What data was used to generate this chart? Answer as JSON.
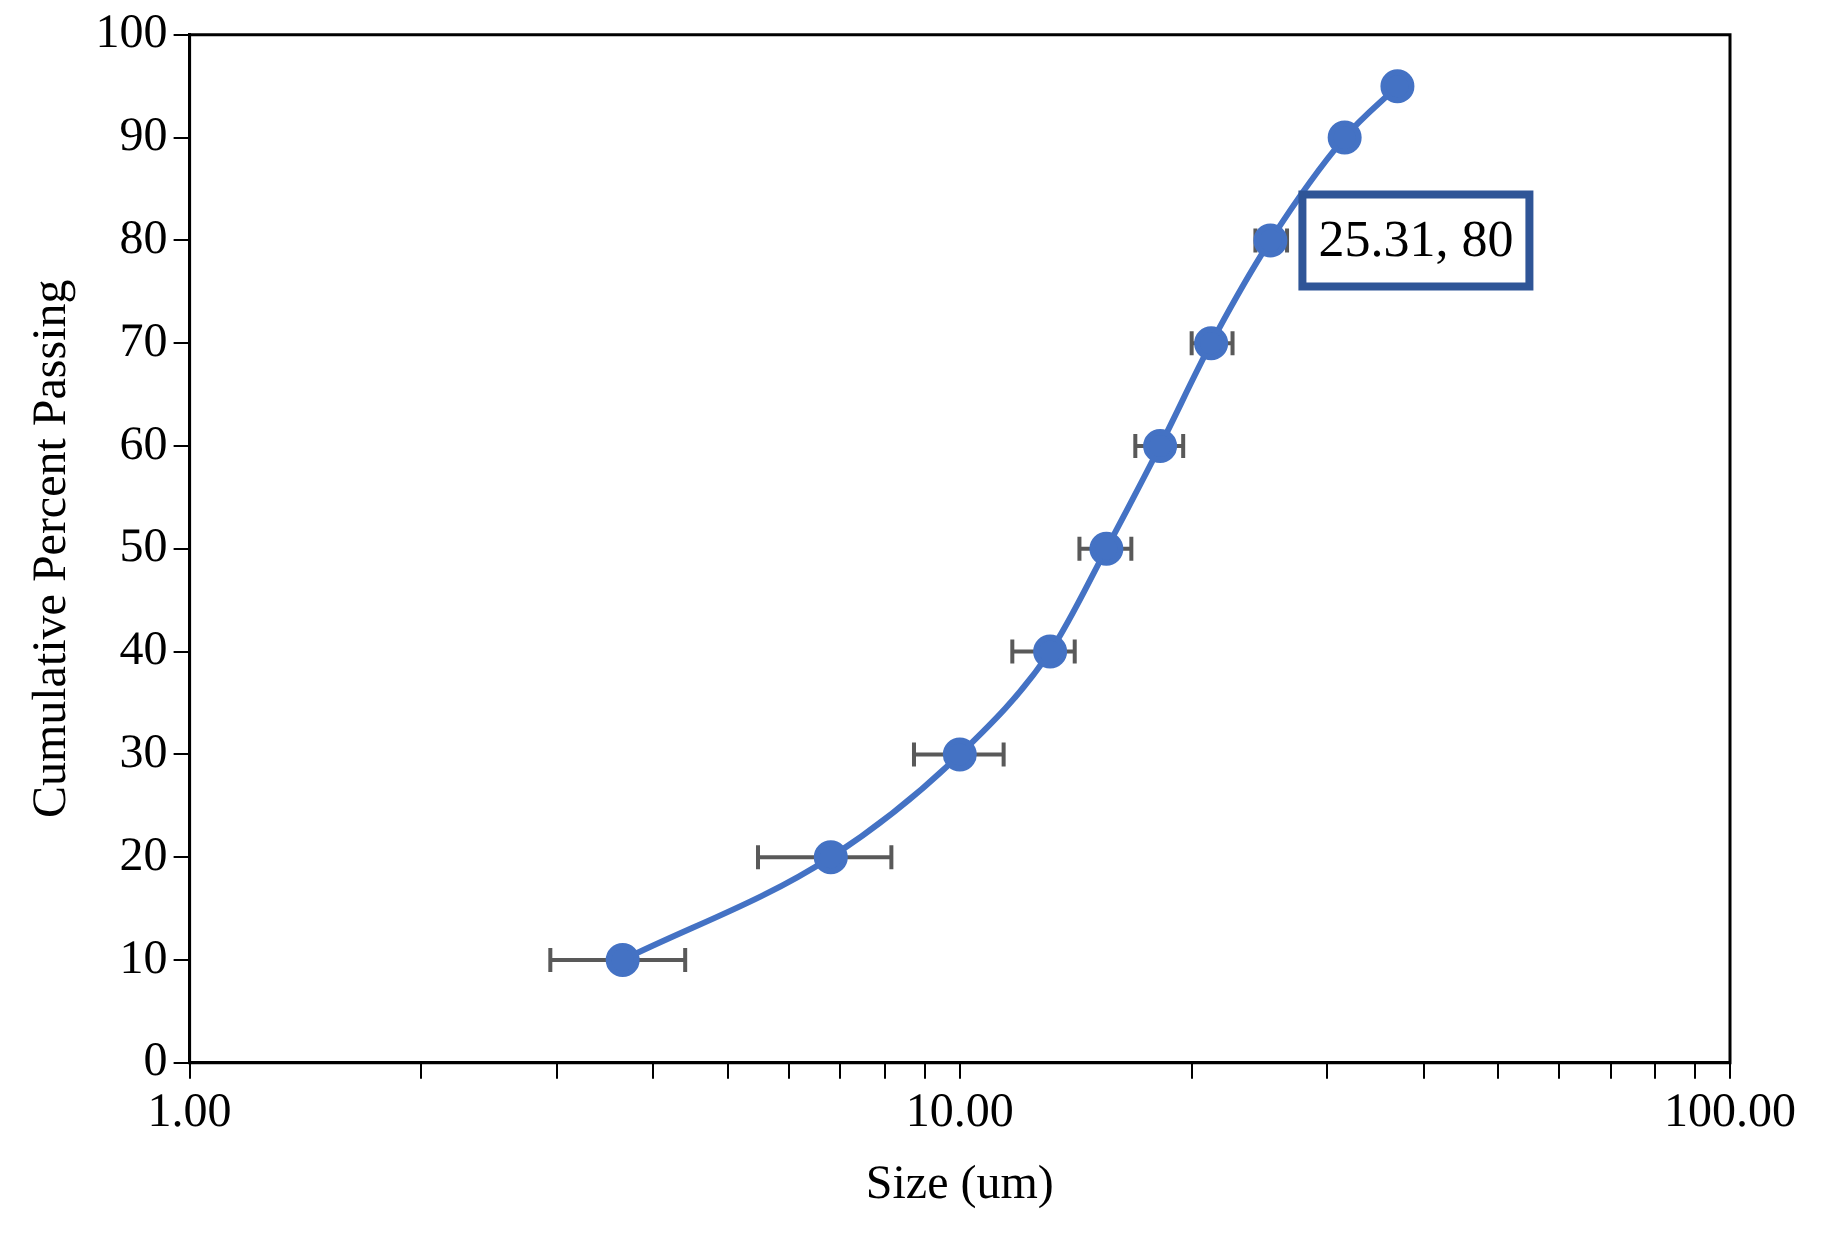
{
  "chart_data": {
    "type": "line",
    "xlabel": "Size (um)",
    "ylabel": "Cumulative Percent Passing",
    "log": "x",
    "x": [
      3.65,
      6.8,
      10.0,
      13.1,
      15.5,
      18.2,
      21.2,
      25.31,
      31.6,
      37.0
    ],
    "series": [
      {
        "color": "#4472c4",
        "values": [
          10,
          20,
          30,
          40,
          50,
          60,
          70,
          80,
          90,
          95
        ],
        "xerrors": [
          [
            2.94,
            4.4
          ],
          [
            5.47,
            8.15
          ],
          [
            8.72,
            11.4
          ],
          [
            11.7,
            14.1
          ],
          [
            14.3,
            16.7
          ],
          [
            16.9,
            19.5
          ],
          [
            20.0,
            22.6
          ],
          [
            24.2,
            26.6
          ],
          null,
          null
        ]
      }
    ],
    "xlim": [
      1,
      100
    ],
    "xticks": [
      {
        "value": 1,
        "label": "1.00"
      },
      {
        "value": 2,
        "label": null
      },
      {
        "value": 3,
        "label": null
      },
      {
        "value": 4,
        "label": null
      },
      {
        "value": 5,
        "label": null
      },
      {
        "value": 6,
        "label": null
      },
      {
        "value": 7,
        "label": null
      },
      {
        "value": 8,
        "label": null
      },
      {
        "value": 9,
        "label": null
      },
      {
        "value": 10,
        "label": "10.00"
      },
      {
        "value": 20,
        "label": null
      },
      {
        "value": 30,
        "label": null
      },
      {
        "value": 40,
        "label": null
      },
      {
        "value": 50,
        "label": null
      },
      {
        "value": 60,
        "label": null
      },
      {
        "value": 70,
        "label": null
      },
      {
        "value": 80,
        "label": null
      },
      {
        "value": 90,
        "label": null
      },
      {
        "value": 100,
        "label": "100.00"
      }
    ],
    "ylim": [
      0,
      100
    ],
    "yticks": [
      0,
      10,
      20,
      30,
      40,
      50,
      60,
      70,
      80,
      90,
      100
    ],
    "annotations": [
      {
        "text": "25.31, 80",
        "x": 25.31,
        "y": 80
      }
    ],
    "marker": "circle",
    "line_style": "solid",
    "grid": false,
    "legend": false
  }
}
